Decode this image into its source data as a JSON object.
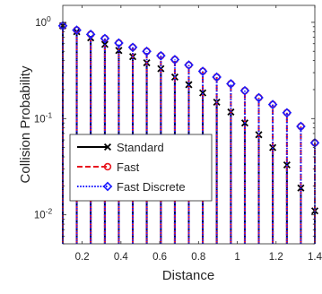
{
  "chart_data": {
    "type": "line",
    "xlabel": "Distance",
    "ylabel": "Collision Probability",
    "xlim": [
      0.1,
      1.4
    ],
    "ylim": [
      0.005,
      1.5
    ],
    "yscale": "log",
    "grid": false,
    "legend_position": "center-left",
    "x_ticks": [
      {
        "value": 0.2,
        "label": "0.2"
      },
      {
        "value": 0.4,
        "label": "0.4"
      },
      {
        "value": 0.6,
        "label": "0.6"
      },
      {
        "value": 0.8,
        "label": "0.8"
      },
      {
        "value": 1.0,
        "label": "1"
      },
      {
        "value": 1.2,
        "label": "1.2"
      },
      {
        "value": 1.4,
        "label": "1.4"
      }
    ],
    "y_ticks": [
      {
        "value": 0.01,
        "base": "10",
        "exp": "-2"
      },
      {
        "value": 0.1,
        "base": "10",
        "exp": "-1"
      },
      {
        "value": 1,
        "base": "10",
        "exp": "0"
      }
    ],
    "x": [
      0.1,
      0.172,
      0.244,
      0.317,
      0.389,
      0.461,
      0.533,
      0.606,
      0.678,
      0.75,
      0.822,
      0.894,
      0.967,
      1.039,
      1.111,
      1.183,
      1.256,
      1.328,
      1.4
    ],
    "series": [
      {
        "name": "Standard",
        "color": "#000000",
        "dash": "solid",
        "marker": "x",
        "values": [
          0.92,
          0.8,
          0.69,
          0.59,
          0.51,
          0.44,
          0.38,
          0.33,
          0.27,
          0.225,
          0.185,
          0.148,
          0.117,
          0.09,
          0.068,
          0.05,
          0.033,
          0.019,
          0.011
        ]
      },
      {
        "name": "Fast",
        "color": "#e8161f",
        "dash": "dashed",
        "marker": "circle",
        "values": [
          0.92,
          0.83,
          0.75,
          0.68,
          0.61,
          0.55,
          0.5,
          0.45,
          0.41,
          0.36,
          0.31,
          0.27,
          0.23,
          0.195,
          0.165,
          0.14,
          0.115,
          0.083,
          0.056
        ]
      },
      {
        "name": "Fast Discrete",
        "color": "#1a1aff",
        "dash": "dotted",
        "marker": "diamond",
        "values": [
          0.92,
          0.83,
          0.75,
          0.68,
          0.61,
          0.55,
          0.5,
          0.45,
          0.41,
          0.36,
          0.31,
          0.27,
          0.23,
          0.195,
          0.165,
          0.14,
          0.115,
          0.083,
          0.056
        ]
      }
    ]
  }
}
